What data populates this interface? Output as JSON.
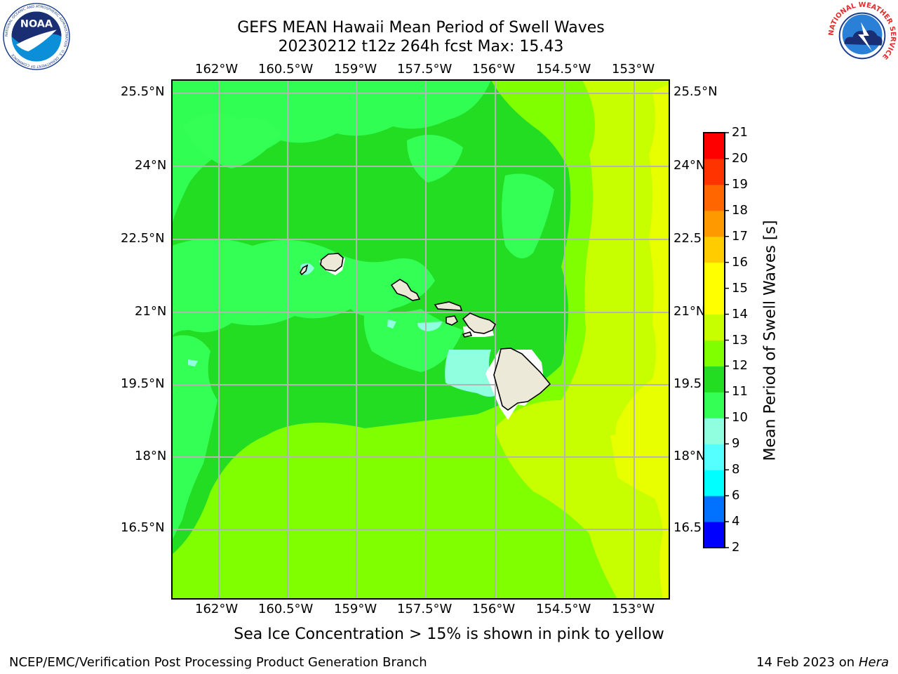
{
  "title": {
    "line1": "GEFS MEAN Hawaii Mean Period of Swell Waves",
    "line2": "20230212 t12z 264h fcst   Max: 15.43"
  },
  "map": {
    "lon_labels": [
      "162°W",
      "160.5°W",
      "159°W",
      "157.5°W",
      "156°W",
      "154.5°W",
      "153°W"
    ],
    "lat_labels_left": [
      "25.5°N",
      "24°N",
      "22.5°N",
      "21°N",
      "19.5°N",
      "18°N",
      "16.5°N"
    ],
    "lat_labels_right": [
      "25.5°N",
      "24°N",
      "22.5",
      "21°N",
      "19.5",
      "18°N",
      "16.5"
    ],
    "islands": [
      "Niihau",
      "Kauai",
      "Oahu",
      "Molokai",
      "Lanai",
      "Maui",
      "Kahoolawe",
      "Hawaii"
    ],
    "colors": {
      "land": "#ece9d8",
      "grid": "#b4b4b4",
      "green_10_11": "#33ff55",
      "green_11_12": "#22dd22",
      "green_12_13": "#7fff00",
      "yellowgreen_13_14": "#c8ff00",
      "yellow_14_15": "#e8ff00",
      "aqua_9_10": "#8fffe0"
    }
  },
  "colorbar": {
    "title": "Mean Period of Swell Waves [s]",
    "levels": [
      "2",
      "4",
      "6",
      "8",
      "9",
      "10",
      "11",
      "12",
      "13",
      "14",
      "15",
      "16",
      "17",
      "18",
      "19",
      "20",
      "21"
    ],
    "colors": [
      "#0000ff",
      "#0072ff",
      "#00ffff",
      "#55ffff",
      "#8fffe0",
      "#33ff55",
      "#22dd22",
      "#7fff00",
      "#c8ff00",
      "#ffff00",
      "#ffff00",
      "#ffcc00",
      "#ff9900",
      "#ff6600",
      "#ff3300",
      "#ff0000"
    ]
  },
  "footnote": "Sea Ice Concentration > 15% is shown in pink to yellow",
  "credit": "NCEP/EMC/Verification Post Processing Product Generation Branch",
  "date": "14 Feb 2023 on",
  "host": "Hera",
  "logos": {
    "noaa_text": "NOAA",
    "noaa_ring": "NATIONAL OCEANIC AND ATMOSPHERIC ADMINISTRATION · U.S. DEPARTMENT OF COMMERCE",
    "nws_ring": "NATIONAL WEATHER SERVICE"
  }
}
